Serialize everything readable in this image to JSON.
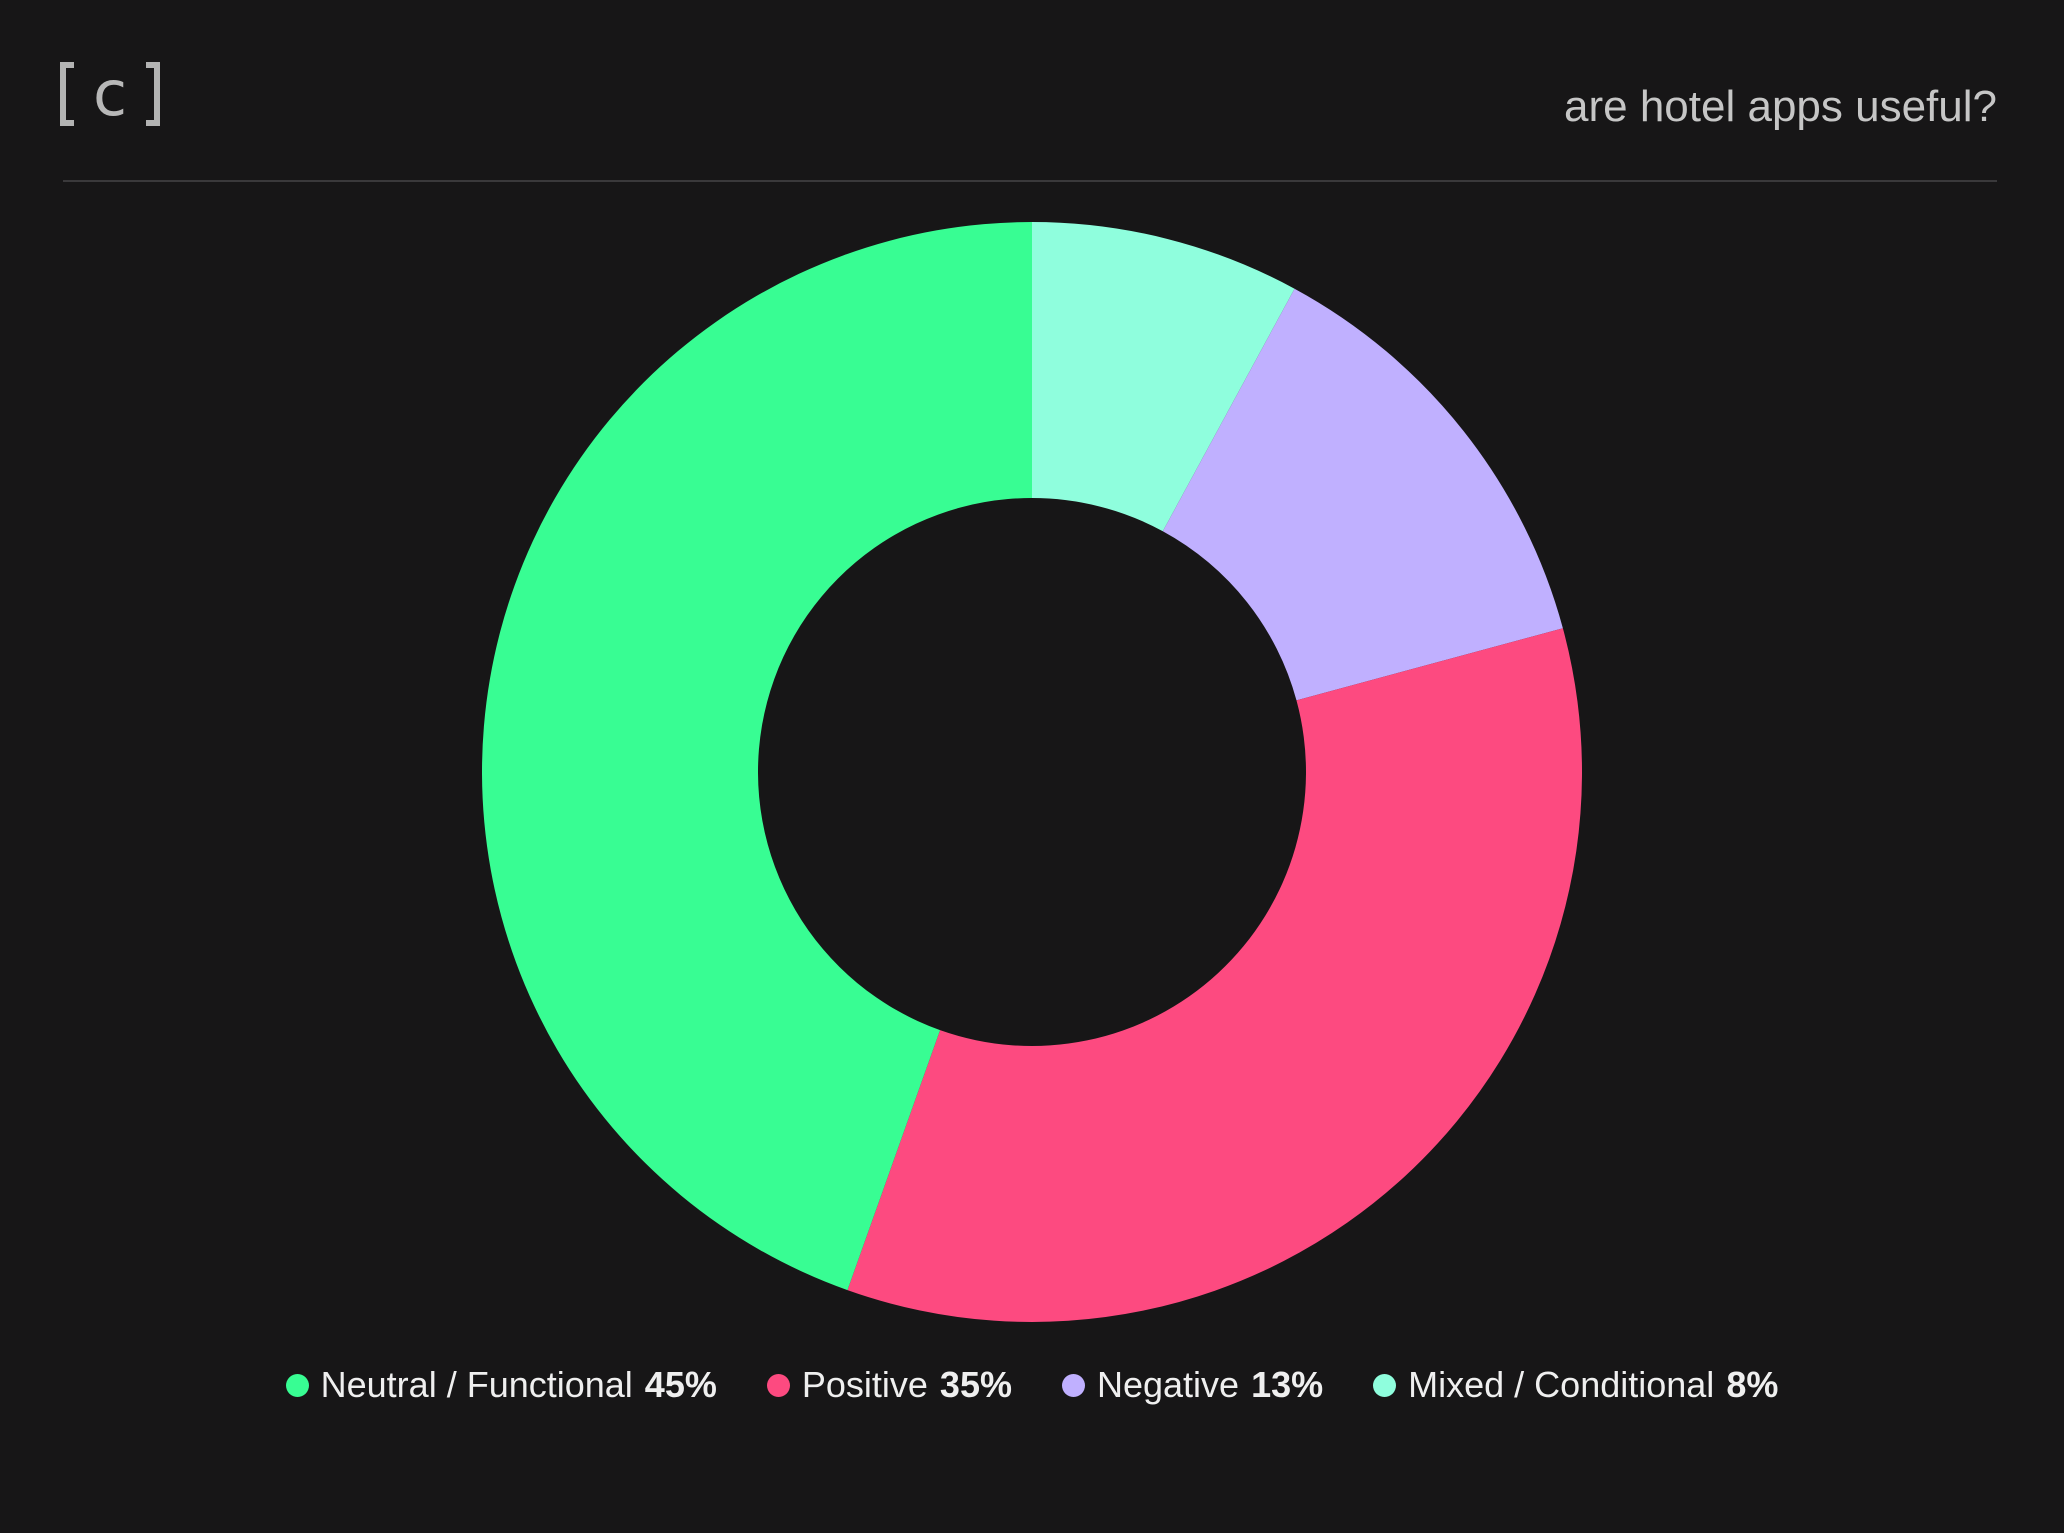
{
  "header": {
    "logo_text": "c",
    "title": "are hotel apps useful?"
  },
  "chart_data": {
    "type": "pie",
    "donut": true,
    "legend_position": "bottom",
    "title": "are hotel apps useful?",
    "series": [
      {
        "name": "Neutral / Functional",
        "value": 45,
        "label": "45%",
        "color": "#38fd93"
      },
      {
        "name": "Positive",
        "value": 35,
        "label": "35%",
        "color": "#fd4a80"
      },
      {
        "name": "Negative",
        "value": 13,
        "label": "13%",
        "color": "#c0b0ff"
      },
      {
        "name": "Mixed / Conditional",
        "value": 8,
        "label": "8%",
        "color": "#8ffedd"
      }
    ],
    "slice_order_clockwise_from_top": [
      "Mixed / Conditional",
      "Negative",
      "Positive",
      "Neutral / Functional"
    ]
  }
}
